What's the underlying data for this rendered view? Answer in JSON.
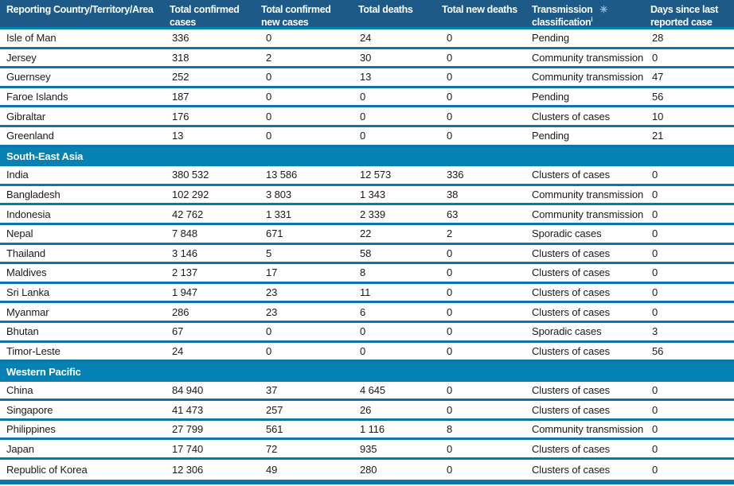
{
  "theme": {
    "header_bg": "#1E5A88",
    "section_bg": "#0681B4",
    "line_color": "#0C76A8",
    "header_text": "#FFFFFF",
    "body_text": "#1B1B1B",
    "asterisk_color": "#8FBCDA"
  },
  "table": {
    "columns": [
      {
        "id": "country",
        "label": "Reporting Country/Territory/Area"
      },
      {
        "id": "total-confirmed-cases",
        "label": "Total confirmed cases"
      },
      {
        "id": "total-confirmed-new-cases",
        "label": "Total confirmed new cases"
      },
      {
        "id": "total-deaths",
        "label": "Total deaths"
      },
      {
        "id": "total-new-deaths",
        "label": "Total new deaths"
      },
      {
        "id": "transmission-classification",
        "label_line1": "Transmission",
        "mark": "✳",
        "label_line2": "classification",
        "sup": "i"
      },
      {
        "id": "days-since-last-reported-case",
        "label": "Days since last reported case"
      }
    ],
    "rows": [
      {
        "type": "data",
        "cells": [
          "Isle of Man",
          "336",
          "0",
          "24",
          "0",
          "Pending",
          "28"
        ]
      },
      {
        "type": "data",
        "cells": [
          "Jersey",
          "318",
          "2",
          "30",
          "0",
          "Community transmission",
          "0"
        ]
      },
      {
        "type": "data",
        "cells": [
          "Guernsey",
          "252",
          "0",
          "13",
          "0",
          "Community transmission",
          "47"
        ]
      },
      {
        "type": "data",
        "cells": [
          "Faroe Islands",
          "187",
          "0",
          "0",
          "0",
          "Pending",
          "56"
        ]
      },
      {
        "type": "data",
        "cells": [
          "Gibraltar",
          "176",
          "0",
          "0",
          "0",
          "Clusters of cases",
          "10"
        ]
      },
      {
        "type": "data",
        "cells": [
          "Greenland",
          "13",
          "0",
          "0",
          "0",
          "Pending",
          "21"
        ]
      },
      {
        "type": "section",
        "label": "South-East Asia"
      },
      {
        "type": "data",
        "cells": [
          "India",
          "380 532",
          "13 586",
          "12 573",
          "336",
          "Clusters of cases",
          "0"
        ]
      },
      {
        "type": "data",
        "cells": [
          "Bangladesh",
          "102 292",
          "3 803",
          "1 343",
          "38",
          "Community transmission",
          "0"
        ]
      },
      {
        "type": "data",
        "cells": [
          "Indonesia",
          "42 762",
          "1 331",
          "2 339",
          "63",
          "Community transmission",
          "0"
        ]
      },
      {
        "type": "data",
        "cells": [
          "Nepal",
          "7 848",
          "671",
          "22",
          "2",
          "Sporadic cases",
          "0"
        ]
      },
      {
        "type": "data",
        "cells": [
          "Thailand",
          "3 146",
          "5",
          "58",
          "0",
          "Clusters of cases",
          "0"
        ]
      },
      {
        "type": "data",
        "cells": [
          "Maldives",
          "2 137",
          "17",
          "8",
          "0",
          "Clusters of cases",
          "0"
        ]
      },
      {
        "type": "data",
        "cells": [
          "Sri Lanka",
          "1 947",
          "23",
          "11",
          "0",
          "Clusters of cases",
          "0"
        ]
      },
      {
        "type": "data",
        "cells": [
          "Myanmar",
          "286",
          "23",
          "6",
          "0",
          "Clusters of cases",
          "0"
        ]
      },
      {
        "type": "data",
        "cells": [
          "Bhutan",
          "67",
          "0",
          "0",
          "0",
          "Sporadic cases",
          "3"
        ]
      },
      {
        "type": "data",
        "cells": [
          "Timor-Leste",
          "24",
          "0",
          "0",
          "0",
          "Clusters of cases",
          "56"
        ]
      },
      {
        "type": "section",
        "label": "Western Pacific"
      },
      {
        "type": "data",
        "cells": [
          "China",
          "84 940",
          "37",
          "4 645",
          "0",
          "Clusters of cases",
          "0"
        ]
      },
      {
        "type": "data",
        "cells": [
          "Singapore",
          "41 473",
          "257",
          "26",
          "0",
          "Clusters of cases",
          "0"
        ]
      },
      {
        "type": "data",
        "cells": [
          "Philippines",
          "27 799",
          "561",
          "1 116",
          "8",
          "Community transmission",
          "0"
        ]
      },
      {
        "type": "data",
        "cells": [
          "Japan",
          "17 740",
          "72",
          "935",
          "0",
          "Clusters of cases",
          "0"
        ]
      },
      {
        "type": "data",
        "cells": [
          "Republic of Korea",
          "12 306",
          "49",
          "280",
          "0",
          "Clusters of cases",
          "0"
        ]
      }
    ]
  }
}
